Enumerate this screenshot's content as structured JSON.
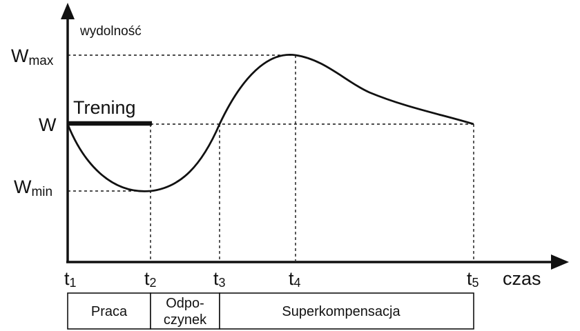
{
  "y_axis_label": "wydolność",
  "x_axis_label": "czas",
  "levels": {
    "wmax": {
      "main": "W",
      "sub": "max"
    },
    "w": {
      "main": "W",
      "sub": ""
    },
    "wmin": {
      "main": "W",
      "sub": "min"
    }
  },
  "times": [
    {
      "main": "t",
      "sub": "1"
    },
    {
      "main": "t",
      "sub": "2"
    },
    {
      "main": "t",
      "sub": "3"
    },
    {
      "main": "t",
      "sub": "4"
    },
    {
      "main": "t",
      "sub": "5"
    }
  ],
  "training_label": "Trening",
  "phases": {
    "praca": "Praca",
    "odpoczynek_line1": "Odpo-",
    "odpoczynek_line2": "czynek",
    "superkompensacja": "Superkompensacja"
  }
}
